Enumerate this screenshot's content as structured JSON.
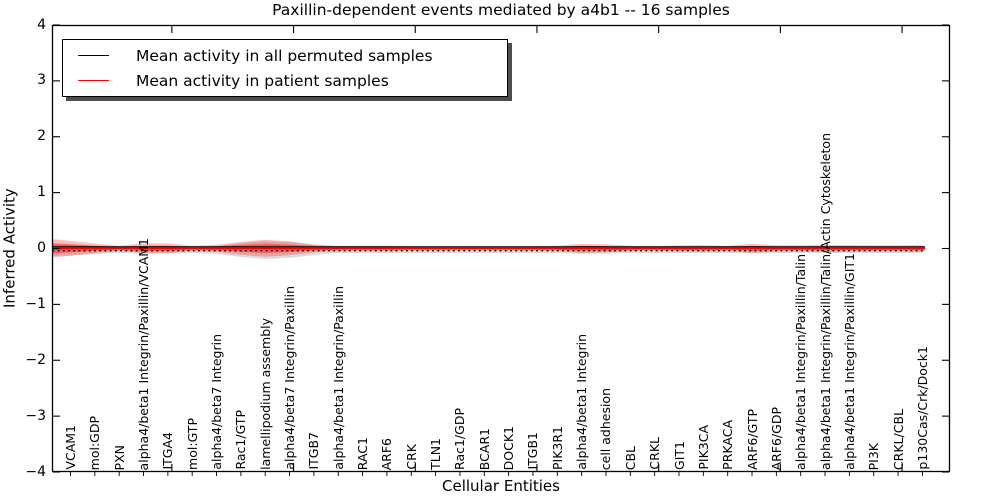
{
  "chart_data": {
    "type": "line",
    "title": "Paxillin-dependent events mediated by a4b1 -- 16 samples",
    "xlabel": "Cellular Entities",
    "ylabel": "Inferred Activity",
    "ylim": [
      -4,
      4
    ],
    "yticklabels": [
      "4",
      "3",
      "2",
      "1",
      "0",
      "−1",
      "−2",
      "−3",
      "−4"
    ],
    "ytickvalues": [
      4,
      3,
      2,
      1,
      0,
      -1,
      -2,
      -3,
      -4
    ],
    "grid": false,
    "legend_position": "upper left",
    "entities": [
      "VCAM1",
      "mol:GDP",
      "PXN",
      "alpha4/beta1 Integrin/Paxillin/VCAM1",
      "ITGA4",
      "mol:GTP",
      "alpha4/beta7 Integrin",
      "Rac1/GTP",
      "lamellipodium assembly",
      "alpha4/beta7 Integrin/Paxillin",
      "ITGB7",
      "alpha4/beta1 Integrin/Paxillin",
      "RAC1",
      "ARF6",
      "CRK",
      "TLN1",
      "Rac1/GDP",
      "BCAR1",
      "DOCK1",
      "ITGB1",
      "PIK3R1",
      "alpha4/beta1 Integrin",
      "cell adhesion",
      "CBL",
      "CRKL",
      "GIT1",
      "PIK3CA",
      "PRKACA",
      "ARF6/GTP",
      "ARF6/GDP",
      "alpha4/beta1 Integrin/Paxillin/Talin",
      "alpha4/beta1 Integrin/Paxillin/Talin/Actin Cytoskeleton",
      "alpha4/beta1 Integrin/Paxillin/GIT1",
      "PI3K",
      "CRKL/CBL",
      "p130Cas/Crk/Dock1"
    ],
    "series": [
      {
        "name": "Mean activity in all permuted samples",
        "color": "#000000",
        "values": [
          0.03,
          0.03,
          0.03,
          0.03,
          0.03,
          0.03,
          0.03,
          0.03,
          0.03,
          0.03,
          0.03,
          0.03,
          0.03,
          0.03,
          0.03,
          0.03,
          0.03,
          0.03,
          0.03,
          0.03,
          0.03,
          0.03,
          0.03,
          0.03,
          0.03,
          0.03,
          0.03,
          0.03,
          0.03,
          0.03,
          0.03,
          0.03,
          0.03,
          0.03,
          0.03,
          0.03
        ]
      },
      {
        "name": "Mean activity in patient samples",
        "color": "#ff0000",
        "values": [
          0.0,
          0.0,
          0.0,
          0.0,
          0.0,
          0.0,
          0.0,
          0.0,
          0.0,
          0.0,
          0.0,
          0.0,
          0.0,
          0.0,
          0.0,
          0.0,
          0.0,
          0.0,
          0.0,
          0.0,
          0.0,
          0.0,
          0.0,
          0.0,
          0.0,
          0.0,
          0.0,
          0.0,
          0.0,
          0.0,
          0.0,
          0.0,
          0.0,
          0.0,
          0.0,
          0.0
        ]
      }
    ],
    "dotted_reference_value": -0.04,
    "bands": {
      "patient_std_halfwidth": [
        0.134,
        0.089,
        0.045,
        0.089,
        0.089,
        0.045,
        0.063,
        0.116,
        0.152,
        0.125,
        0.072,
        0.045,
        0.045,
        0.045,
        0.04,
        0.04,
        0.04,
        0.04,
        0.04,
        0.04,
        0.045,
        0.081,
        0.072,
        0.045,
        0.04,
        0.054,
        0.057,
        0.045,
        0.081,
        0.054,
        0.054,
        0.063,
        0.057,
        0.054,
        0.054,
        0.057
      ],
      "permuted_std_halfwidth": [
        0.098,
        0.072,
        0.054,
        0.063,
        0.063,
        0.054,
        0.072,
        0.125,
        0.161,
        0.143,
        0.089,
        0.054,
        0.054,
        0.054,
        0.054,
        0.054,
        0.054,
        0.054,
        0.054,
        0.054,
        0.054,
        0.072,
        0.063,
        0.054,
        0.054,
        0.054,
        0.054,
        0.054,
        0.063,
        0.054,
        0.054,
        0.054,
        0.054,
        0.054,
        0.054,
        0.054
      ],
      "left_edge_patient_halfwidth": 0.165,
      "left_edge_permuted_halfwidth": 0.11
    },
    "colors": {
      "patient_line": "#ff0000",
      "permuted_line": "#000000",
      "patient_fill": "rgba(255,0,0,0.25)",
      "patient_fill_inner": "rgba(255,0,0,0.40)",
      "permuted_fill": "rgba(0,0,0,0.14)",
      "axis": "#000000",
      "legend_shadow": "#4d4d4d"
    }
  }
}
